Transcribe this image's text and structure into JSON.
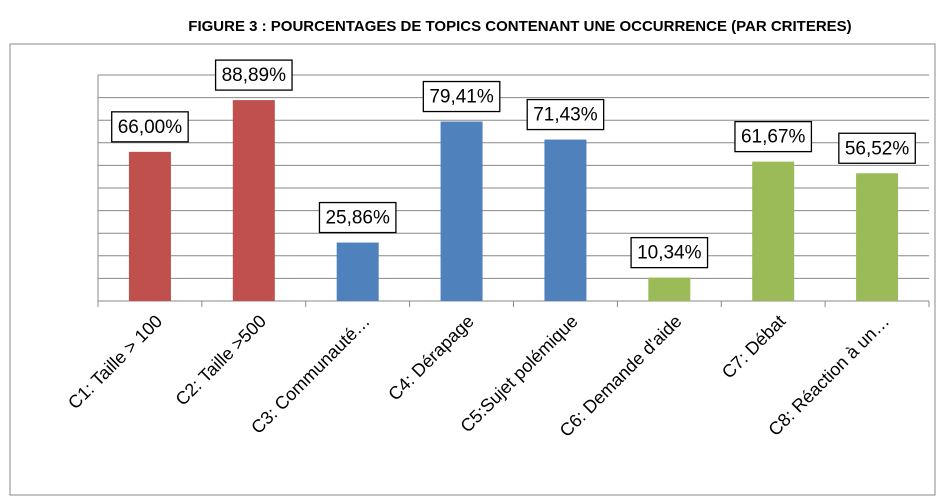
{
  "chart_data": {
    "type": "bar",
    "title": "FIGURE 3 : POURCENTAGES DE TOPICS CONTENANT UNE OCCURRENCE (PAR CRITERES)",
    "categories": [
      "C1: Taille > 100",
      "C2: Taille >500",
      "C3: Communauté…",
      "C4: Dérapage",
      "C5:Sujet polémique",
      "C6: Demande d'aide",
      "C7: Débat",
      "C8: Réaction à un…"
    ],
    "values": [
      66.0,
      88.89,
      25.86,
      79.41,
      71.43,
      10.34,
      61.67,
      56.52
    ],
    "value_labels": [
      "66,00%",
      "88,89%",
      "25,86%",
      "79,41%",
      "71,43%",
      "10,34%",
      "61,67%",
      "56,52%"
    ],
    "colors": [
      "#c0504d",
      "#c0504d",
      "#4f81bd",
      "#4f81bd",
      "#4f81bd",
      "#9bbb59",
      "#9bbb59",
      "#9bbb59"
    ],
    "ylim": [
      0,
      100
    ],
    "yticks": [
      0,
      10,
      20,
      30,
      40,
      50,
      60,
      70,
      80,
      90,
      100
    ],
    "grid": true
  }
}
